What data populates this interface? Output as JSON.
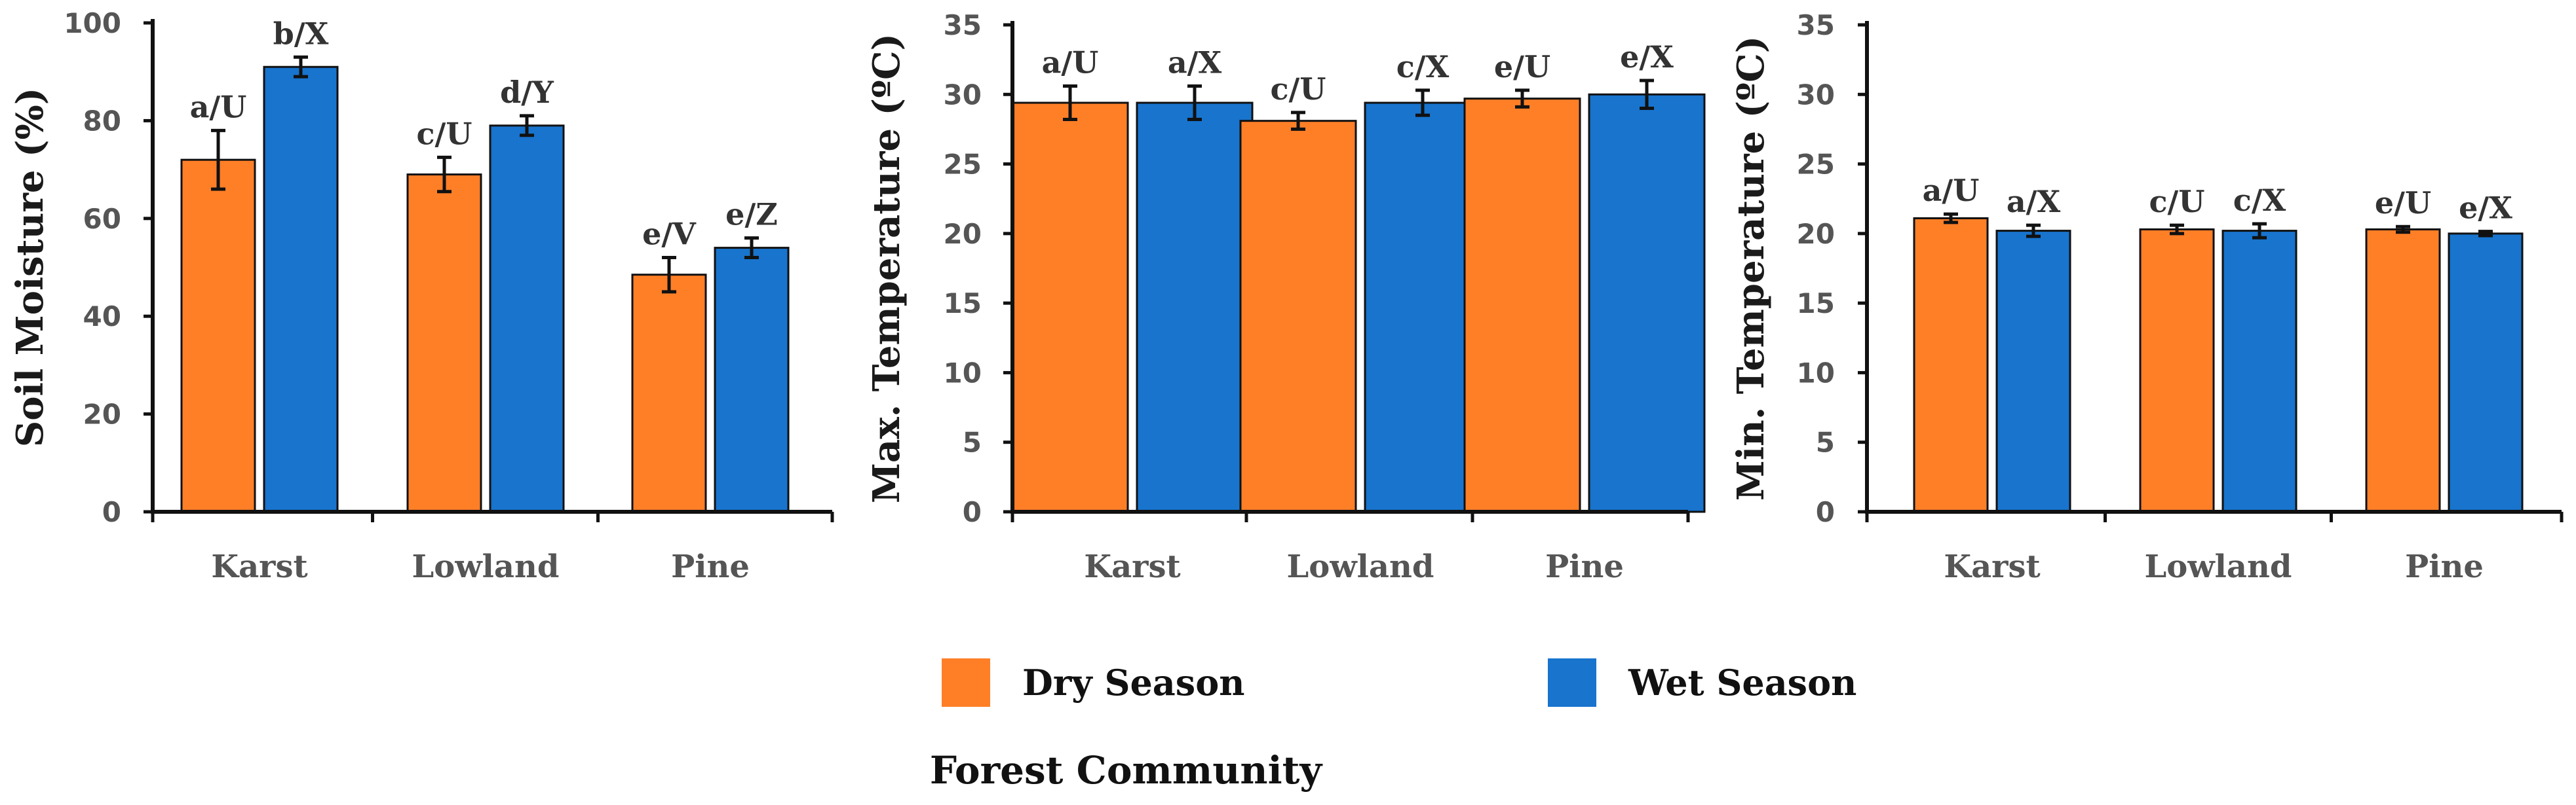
{
  "colors": {
    "dry": "#FF7F27",
    "wet": "#1874CD"
  },
  "legend": {
    "items": [
      {
        "label": "Dry Season",
        "color": "#FF7F27"
      },
      {
        "label": "Wet Season",
        "color": "#1874CD"
      }
    ]
  },
  "xtitle": "Forest Community",
  "chart_data": [
    {
      "type": "bar",
      "ylabel": "Soil Moisture (%)",
      "ylim": [
        0,
        100
      ],
      "yticks": [
        0,
        20,
        40,
        60,
        80,
        100
      ],
      "categories": [
        "Karst",
        "Lowland",
        "Pine"
      ],
      "series": [
        {
          "name": "Dry Season",
          "values": [
            72,
            69,
            48.5
          ],
          "errors": [
            6,
            3.5,
            3.5
          ],
          "labels": [
            "a/U",
            "c/U",
            "e/V"
          ]
        },
        {
          "name": "Wet Season",
          "values": [
            91,
            79,
            54
          ],
          "errors": [
            2,
            2,
            2
          ],
          "labels": [
            "b/X",
            "d/Y",
            "e/Z"
          ]
        }
      ]
    },
    {
      "type": "bar",
      "ylabel": "Max. Temperature (ºC)",
      "ylim": [
        0,
        35
      ],
      "yticks": [
        0,
        5,
        10,
        15,
        20,
        25,
        30,
        35
      ],
      "categories": [
        "Karst",
        "Lowland",
        "Pine"
      ],
      "series": [
        {
          "name": "Dry Season",
          "values": [
            29.4,
            28.1,
            29.7
          ],
          "errors": [
            1.2,
            0.6,
            0.6
          ],
          "labels": [
            "a/U",
            "c/U",
            "e/U"
          ]
        },
        {
          "name": "Wet Season",
          "values": [
            29.4,
            29.4,
            30.0
          ],
          "errors": [
            1.2,
            0.9,
            1.0
          ],
          "labels": [
            "a/X",
            "c/X",
            "e/X"
          ]
        }
      ]
    },
    {
      "type": "bar",
      "ylabel": "Min. Temperature (ºC)",
      "ylim": [
        0,
        35
      ],
      "yticks": [
        0,
        5,
        10,
        15,
        20,
        25,
        30,
        35
      ],
      "categories": [
        "Karst",
        "Lowland",
        "Pine"
      ],
      "series": [
        {
          "name": "Dry Season",
          "values": [
            21.1,
            20.3,
            20.3
          ],
          "errors": [
            0.3,
            0.3,
            0.2
          ],
          "labels": [
            "a/U",
            "c/U",
            "e/U"
          ]
        },
        {
          "name": "Wet Season",
          "values": [
            20.2,
            20.2,
            20.0
          ],
          "errors": [
            0.4,
            0.5,
            0.15
          ],
          "labels": [
            "a/X",
            "c/X",
            "e/X"
          ]
        }
      ]
    }
  ]
}
